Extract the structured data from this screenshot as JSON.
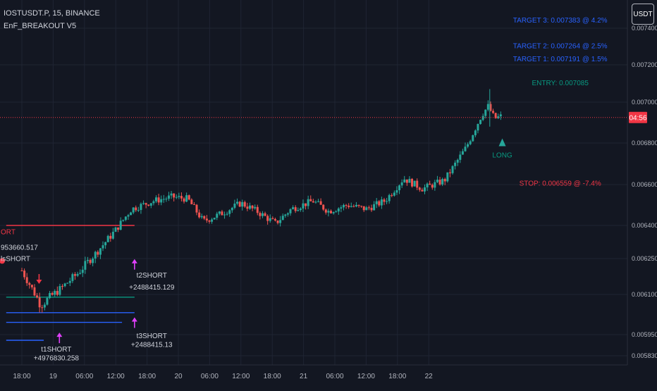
{
  "header": {
    "symbol_line": "IOSTUSDT.P, 15, BINANCE",
    "indicator_line": "EnF_BREAKOUT V5"
  },
  "currency_button": "USDT",
  "price_countdown": "04:56",
  "chart_data": {
    "type": "candlestick",
    "title": "IOSTUSDT.P, 15, BINANCE",
    "y_axis": {
      "ticks": [
        "0.005830",
        "0.005950",
        "0.006100",
        "0.006250",
        "0.006400",
        "0.006600",
        "0.006800",
        "0.007000",
        "0.007200",
        "0.007400"
      ],
      "tick_values": [
        0.00583,
        0.00595,
        0.0061,
        0.00625,
        0.0064,
        0.0066,
        0.0068,
        0.007,
        0.0072,
        0.0074
      ]
    },
    "x_axis": {
      "ticks": [
        "18:00",
        "19",
        "06:00",
        "12:00",
        "18:00",
        "20",
        "06:00",
        "12:00",
        "18:00",
        "21",
        "06:00",
        "12:00",
        "18:00",
        "22"
      ]
    },
    "current_price": 0.006925,
    "price_series": [
      [
        0,
        0.0062
      ],
      [
        0.6,
        0.00606
      ],
      [
        1.2,
        0.00612
      ],
      [
        1.8,
        0.00619
      ],
      [
        2.4,
        0.00628
      ],
      [
        3.0,
        0.00638
      ],
      [
        3.5,
        0.00648
      ],
      [
        4.2,
        0.00652
      ],
      [
        4.8,
        0.00654
      ],
      [
        5.3,
        0.00653
      ],
      [
        5.8,
        0.00642
      ],
      [
        6.4,
        0.00646
      ],
      [
        7.0,
        0.00651
      ],
      [
        7.5,
        0.00647
      ],
      [
        8.1,
        0.00641
      ],
      [
        8.6,
        0.00648
      ],
      [
        9.3,
        0.00652
      ],
      [
        9.8,
        0.00647
      ],
      [
        10.4,
        0.0065
      ],
      [
        11.0,
        0.00648
      ],
      [
        11.6,
        0.00652
      ],
      [
        12.2,
        0.00663
      ],
      [
        12.8,
        0.00658
      ],
      [
        13.5,
        0.00662
      ],
      [
        14.2,
        0.00678
      ],
      [
        14.7,
        0.00694
      ],
      [
        14.9,
        0.00698
      ],
      [
        15.1,
        0.00692
      ],
      [
        15.3,
        0.00693
      ]
    ],
    "signal_lines": [
      {
        "color": "#f23645",
        "y": 0.0064,
        "x_start": -0.5,
        "x_end": 3.6
      },
      {
        "color": "#089981",
        "y": 0.00609,
        "x_start": -0.5,
        "x_end": 3.6
      },
      {
        "color": "#2962ff",
        "y": 0.006032,
        "x_start": -0.5,
        "x_end": 3.6
      },
      {
        "color": "#2962ff",
        "y": 0.005996,
        "x_start": -0.5,
        "x_end": 3.2
      },
      {
        "color": "#2962ff",
        "y": 0.005918,
        "x_start": -0.5,
        "x_end": 0.7
      }
    ],
    "annotations": [
      {
        "text": "TARGET 3: 0.007383 @ 4.2%",
        "color": "#2962ff",
        "x": 17.2,
        "y": 0.00743
      },
      {
        "text": "TARGET 2: 0.007264 @ 2.5%",
        "color": "#2962ff",
        "x": 17.2,
        "y": 0.00729
      },
      {
        "text": "TARGET 1: 0.007191 @ 1.5%",
        "color": "#2962ff",
        "x": 17.2,
        "y": 0.00722
      },
      {
        "text": "ENTRY: 0.007085",
        "color": "#089981",
        "x": 17.2,
        "y": 0.00709
      },
      {
        "text": "LONG",
        "color": "#089981",
        "x": 15.35,
        "y": 0.00673
      },
      {
        "text": "STOP: 0.006559 @ -7.4%",
        "color": "#f23645",
        "x": 17.2,
        "y": 0.006595
      },
      {
        "text": "ORT",
        "color": "#f23645",
        "x": -0.4,
        "y": 0.00636
      },
      {
        "text": "953660.517",
        "color": "#d1d4dc",
        "x": 0.2,
        "y": 0.00629
      },
      {
        "text": "lsSHORT",
        "color": "#d1d4dc",
        "x": 0.2,
        "y": 0.00624
      },
      {
        "text": "t2SHORT",
        "color": "#d1d4dc",
        "x": 4.15,
        "y": 0.00617
      },
      {
        "text": "+2488415.129",
        "color": "#d1d4dc",
        "x": 4.15,
        "y": 0.00612
      },
      {
        "text": "t3SHORT",
        "color": "#d1d4dc",
        "x": 4.15,
        "y": 0.00593
      },
      {
        "text": "+2488415.13",
        "color": "#d1d4dc",
        "x": 4.15,
        "y": 0.00588
      },
      {
        "text": "t1SHORT",
        "color": "#d1d4dc",
        "x": 1.1,
        "y": 0.005855
      },
      {
        "text": "+4976830.258",
        "color": "#d1d4dc",
        "x": 1.1,
        "y": 0.005805
      }
    ],
    "markers": [
      {
        "type": "triangle-up",
        "color": "#26a69a",
        "x": 15.35,
        "y": 0.006795
      },
      {
        "type": "arrow-up",
        "color": "#e040fb",
        "x": 3.6,
        "y": 0.006245
      },
      {
        "type": "arrow-up",
        "color": "#e040fb",
        "x": 3.6,
        "y": 0.006012
      },
      {
        "type": "arrow-up",
        "color": "#e040fb",
        "x": 1.2,
        "y": 0.005955
      },
      {
        "type": "arrow-down",
        "color": "#f23645",
        "x": 0.55,
        "y": 0.00615
      }
    ],
    "legend": "none",
    "grid": true
  }
}
